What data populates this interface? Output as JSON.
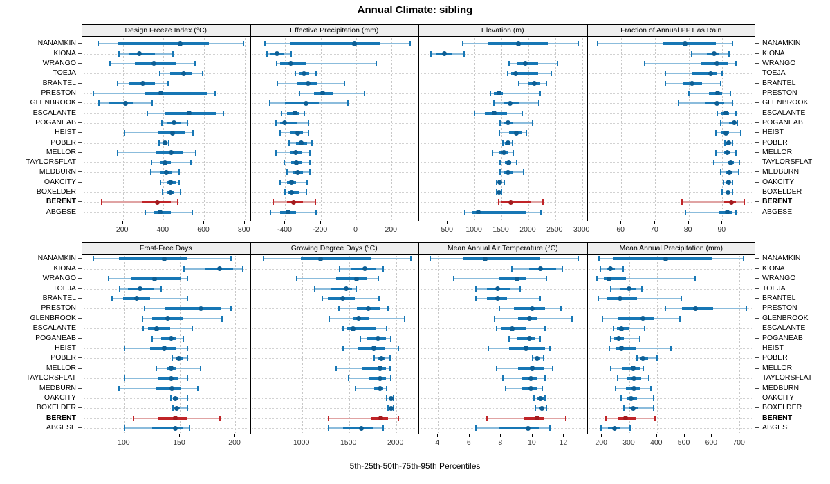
{
  "title": "Annual Climate: sibling",
  "caption": "5th-25th-50th-75th-95th Percentiles",
  "stations": [
    "NANAMKIN",
    "KIONA",
    "WRANGO",
    "TOEJA",
    "BRANTEL",
    "PRESTON",
    "GLENBROOK",
    "ESCALANTE",
    "POGANEAB",
    "HEIST",
    "POBER",
    "MELLOR",
    "TAYLORSFLAT",
    "MEDBURN",
    "OAKCITY",
    "BOXELDER",
    "BERENT",
    "ABGESE"
  ],
  "highlight_station": "BERENT",
  "colors": {
    "normal": {
      "line": "#8bbcdc",
      "bar": "#1777b5",
      "dot": "#0d5e94"
    },
    "highlight": {
      "line": "#e0a3a3",
      "bar": "#c02428",
      "dot": "#a31b1e"
    },
    "grid": "#c8c8c8",
    "strip_bg": "#efefef"
  },
  "chart_data": {
    "type": "dotplot",
    "subtype": "percentile-intervals",
    "percentiles": [
      5,
      25,
      50,
      75,
      95
    ],
    "legend_position": "none",
    "grid": true,
    "panels": [
      {
        "id": "design-freeze-index",
        "title": "Design Freeze Index (°C)",
        "row": 0,
        "col": 0,
        "xlim": [
          0,
          830
        ],
        "ticks": [
          200,
          400,
          600,
          800
        ],
        "values": [
          [
            78,
            177,
            481,
            624,
            793
          ],
          [
            180,
            227,
            281,
            357,
            448
          ],
          [
            136,
            258,
            353,
            462,
            555
          ],
          [
            383,
            433,
            499,
            543,
            592
          ],
          [
            173,
            229,
            299,
            357,
            421
          ],
          [
            53,
            311,
            387,
            614,
            655
          ],
          [
            81,
            131,
            213,
            248,
            343
          ],
          [
            321,
            410,
            527,
            660,
            695
          ],
          [
            393,
            416,
            451,
            486,
            519
          ],
          [
            207,
            370,
            445,
            509,
            546
          ],
          [
            378,
            394,
            406,
            417,
            427
          ],
          [
            173,
            366,
            438,
            499,
            560
          ],
          [
            340,
            383,
            409,
            436,
            534
          ],
          [
            336,
            383,
            413,
            441,
            476
          ],
          [
            386,
            415,
            436,
            462,
            476
          ],
          [
            394,
            415,
            433,
            452,
            483
          ],
          [
            95,
            297,
            371,
            436,
            471
          ],
          [
            310,
            351,
            383,
            436,
            541
          ]
        ]
      },
      {
        "id": "effective-precipitation",
        "title": "Effective Precipitation (mm)",
        "row": 0,
        "col": 1,
        "xlim": [
          -595,
          355
        ],
        "ticks": [
          -400,
          -200,
          0,
          200
        ],
        "values": [
          [
            -515,
            -375,
            -10,
            135,
            305
          ],
          [
            -505,
            -482,
            -447,
            -410,
            -365
          ],
          [
            -447,
            -428,
            -370,
            -286,
            113
          ],
          [
            -345,
            -318,
            -296,
            -267,
            -228
          ],
          [
            -444,
            -331,
            -273,
            -219,
            -67
          ],
          [
            -318,
            -237,
            -190,
            -131,
            47
          ],
          [
            -486,
            -402,
            -282,
            -209,
            -48
          ],
          [
            -422,
            -390,
            -347,
            -325,
            -293
          ],
          [
            -451,
            -431,
            -402,
            -331,
            -270
          ],
          [
            -431,
            -370,
            -329,
            -302,
            -270
          ],
          [
            -379,
            -338,
            -310,
            -276,
            -248
          ],
          [
            -451,
            -376,
            -342,
            -306,
            -263
          ],
          [
            -405,
            -366,
            -338,
            -306,
            -263
          ],
          [
            -390,
            -357,
            -331,
            -302,
            -263
          ],
          [
            -428,
            -392,
            -366,
            -338,
            -277
          ],
          [
            -400,
            -383,
            -364,
            -318,
            -280
          ],
          [
            -467,
            -390,
            -353,
            -302,
            -231
          ],
          [
            -482,
            -428,
            -383,
            -338,
            -226
          ]
        ]
      },
      {
        "id": "elevation",
        "title": "Elevation (m)",
        "row": 0,
        "col": 2,
        "xlim": [
          -30,
          3100
        ],
        "ticks": [
          500,
          1000,
          1500,
          2000,
          2500,
          3000
        ],
        "values": [
          [
            780,
            1250,
            1820,
            2370,
            2925
          ],
          [
            185,
            290,
            435,
            570,
            800
          ],
          [
            1635,
            1785,
            1945,
            2180,
            2540
          ],
          [
            1620,
            1685,
            1760,
            2180,
            2430
          ],
          [
            1825,
            1985,
            2115,
            2225,
            2330
          ],
          [
            1300,
            1360,
            1450,
            1525,
            2225
          ],
          [
            1360,
            1535,
            1665,
            1825,
            2200
          ],
          [
            995,
            1190,
            1360,
            1600,
            1880
          ],
          [
            1470,
            1535,
            1620,
            1700,
            2080
          ],
          [
            1455,
            1645,
            1770,
            1890,
            1965
          ],
          [
            1525,
            1570,
            1620,
            1665,
            1700
          ],
          [
            1330,
            1455,
            1540,
            1620,
            1715
          ],
          [
            1480,
            1570,
            1630,
            1685,
            1785
          ],
          [
            1480,
            1540,
            1620,
            1700,
            1915
          ],
          [
            1415,
            1440,
            1470,
            1500,
            1555
          ],
          [
            1415,
            1435,
            1460,
            1490,
            1505
          ],
          [
            1450,
            1490,
            1675,
            2050,
            2265
          ],
          [
            815,
            960,
            1070,
            1955,
            2235
          ]
        ]
      },
      {
        "id": "fraction-ppt-rain",
        "title": "Fraction of Annual PPT as Rain",
        "row": 0,
        "col": 3,
        "xlim": [
          50,
          100
        ],
        "ticks": [
          60,
          70,
          80,
          90
        ],
        "values": [
          [
            53,
            72.5,
            79,
            88,
            93
          ],
          [
            81,
            85.5,
            87.5,
            89,
            92
          ],
          [
            67,
            83.5,
            88.5,
            91.5,
            94
          ],
          [
            73,
            81,
            86.5,
            88.5,
            90
          ],
          [
            73,
            78.5,
            81,
            84,
            89.5
          ],
          [
            80,
            86,
            88.7,
            90,
            92.5
          ],
          [
            77,
            85,
            88.5,
            90.5,
            93
          ],
          [
            88.5,
            89.5,
            91,
            92,
            94
          ],
          [
            89.5,
            92,
            93.5,
            94,
            94.5
          ],
          [
            88,
            89.5,
            91,
            92,
            95.5
          ],
          [
            90.8,
            91.2,
            91.8,
            92.3,
            93
          ],
          [
            88,
            90.5,
            91.5,
            92.5,
            94
          ],
          [
            87.5,
            91.5,
            92.5,
            93.5,
            95
          ],
          [
            89.5,
            91,
            92,
            93,
            94.8
          ],
          [
            90.3,
            91,
            91.8,
            92.2,
            93
          ],
          [
            90,
            91,
            91.7,
            92.3,
            93
          ],
          [
            78,
            90.5,
            92.7,
            94,
            96.5
          ],
          [
            79,
            89,
            91.5,
            93,
            94
          ]
        ]
      },
      {
        "id": "frost-free-days",
        "title": "Frost-Free Days",
        "row": 1,
        "col": 0,
        "xlim": [
          62,
          214
        ],
        "ticks": [
          100,
          150,
          200
        ],
        "values": [
          [
            72,
            95,
            136,
            157,
            196
          ],
          [
            154,
            173,
            186,
            198,
            207
          ],
          [
            86,
            106,
            127,
            151,
            157
          ],
          [
            96,
            103,
            114,
            127,
            133
          ],
          [
            89,
            99,
            111,
            123,
            157
          ],
          [
            118,
            136,
            169,
            187,
            196
          ],
          [
            116,
            125,
            139,
            153,
            188
          ],
          [
            117,
            121,
            129,
            141,
            161
          ],
          [
            125,
            133,
            142,
            147,
            153
          ],
          [
            100,
            123,
            136,
            147,
            157
          ],
          [
            143,
            147,
            149,
            153,
            157
          ],
          [
            129,
            138,
            142,
            147,
            169
          ],
          [
            100,
            130,
            142,
            149,
            157
          ],
          [
            95,
            128,
            143,
            151,
            166
          ],
          [
            142,
            144,
            146,
            149,
            157
          ],
          [
            144,
            146,
            147,
            150,
            157
          ],
          [
            108,
            130,
            146,
            156,
            186
          ],
          [
            100,
            125,
            146,
            153,
            159
          ]
        ]
      },
      {
        "id": "growing-degree-days",
        "title": "Growing Degree Days (°C)",
        "row": 1,
        "col": 1,
        "xlim": [
          455,
          2245
        ],
        "ticks": [
          1000,
          1500,
          2000
        ],
        "values": [
          [
            590,
            990,
            1195,
            1730,
            2160
          ],
          [
            1400,
            1520,
            1665,
            1780,
            1860
          ],
          [
            945,
            1360,
            1580,
            1690,
            1810
          ],
          [
            1135,
            1310,
            1470,
            1530,
            1575
          ],
          [
            1215,
            1275,
            1435,
            1560,
            1820
          ],
          [
            1390,
            1580,
            1705,
            1830,
            1915
          ],
          [
            1290,
            1540,
            1605,
            1715,
            2090
          ],
          [
            1440,
            1470,
            1545,
            1780,
            1900
          ],
          [
            1620,
            1690,
            1805,
            1890,
            1945
          ],
          [
            1435,
            1595,
            1765,
            1875,
            2025
          ],
          [
            1765,
            1805,
            1845,
            1885,
            1935
          ],
          [
            1360,
            1645,
            1830,
            1890,
            1935
          ],
          [
            1495,
            1715,
            1830,
            1890,
            1940
          ],
          [
            1570,
            1765,
            1830,
            1865,
            1900
          ],
          [
            1900,
            1925,
            1945,
            1960,
            1975
          ],
          [
            1915,
            1935,
            1950,
            1960,
            1975
          ],
          [
            1285,
            1740,
            1835,
            1915,
            2025
          ],
          [
            1285,
            1440,
            1630,
            1755,
            1860
          ]
        ]
      },
      {
        "id": "mean-annual-air-temperature",
        "title": "Mean Annual Air Temperature (°C)",
        "row": 1,
        "col": 2,
        "xlim": [
          2.8,
          13.5
        ],
        "ticks": [
          4,
          6,
          8,
          10,
          12
        ],
        "values": [
          [
            3.5,
            5.6,
            7.0,
            10.5,
            12.9
          ],
          [
            8.7,
            9.8,
            10.5,
            11.5,
            11.9
          ],
          [
            5.0,
            7.9,
            9.0,
            9.6,
            10.9
          ],
          [
            6.4,
            7.1,
            7.8,
            8.6,
            9.2
          ],
          [
            6.4,
            7.1,
            7.8,
            8.4,
            10.5
          ],
          [
            7.9,
            8.8,
            10.0,
            10.8,
            11.8
          ],
          [
            7.6,
            9.1,
            9.8,
            10.3,
            12.5
          ],
          [
            7.7,
            8.0,
            8.7,
            9.6,
            10.8
          ],
          [
            8.5,
            9.0,
            9.8,
            10.2,
            10.5
          ],
          [
            7.2,
            8.5,
            9.6,
            10.8,
            11.1
          ],
          [
            10.0,
            10.2,
            10.3,
            10.5,
            10.7
          ],
          [
            7.7,
            9.1,
            10.0,
            10.7,
            11.3
          ],
          [
            8.1,
            9.3,
            9.9,
            10.3,
            10.8
          ],
          [
            8.3,
            9.3,
            9.9,
            10.3,
            10.6
          ],
          [
            10.1,
            10.3,
            10.5,
            10.7,
            10.8
          ],
          [
            10.2,
            10.4,
            10.6,
            10.7,
            10.9
          ],
          [
            7.1,
            9.5,
            10.3,
            10.7,
            12.1
          ],
          [
            6.4,
            7.9,
            9.7,
            10.4,
            11.1
          ]
        ]
      },
      {
        "id": "mean-annual-precipitation",
        "title": "Mean Annual Precipitation (mm)",
        "row": 1,
        "col": 3,
        "xlim": [
          148,
          760
        ],
        "ticks": [
          200,
          300,
          400,
          500,
          600,
          700
        ],
        "values": [
          [
            190,
            240,
            433,
            600,
            715
          ],
          [
            195,
            217,
            230,
            247,
            277
          ],
          [
            183,
            206,
            227,
            287,
            540
          ],
          [
            232,
            264,
            300,
            325,
            345
          ],
          [
            188,
            218,
            267,
            328,
            489
          ],
          [
            430,
            490,
            540,
            605,
            724
          ],
          [
            203,
            260,
            350,
            387,
            483
          ],
          [
            242,
            256,
            272,
            297,
            356
          ],
          [
            233,
            245,
            260,
            280,
            337
          ],
          [
            227,
            252,
            270,
            325,
            450
          ],
          [
            328,
            337,
            349,
            367,
            400
          ],
          [
            233,
            275,
            314,
            337,
            350
          ],
          [
            258,
            289,
            317,
            342,
            370
          ],
          [
            250,
            287,
            316,
            339,
            378
          ],
          [
            270,
            292,
            306,
            328,
            387
          ],
          [
            280,
            300,
            314,
            333,
            387
          ],
          [
            214,
            260,
            287,
            322,
            392
          ],
          [
            196,
            222,
            245,
            267,
            302
          ]
        ]
      }
    ]
  }
}
